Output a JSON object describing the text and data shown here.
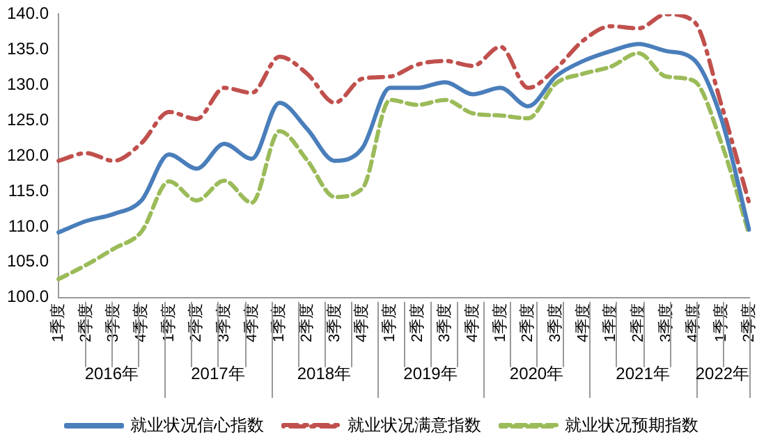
{
  "chart_data": {
    "type": "line",
    "categories": [
      "1季度",
      "2季度",
      "3季度",
      "4季度",
      "1季度",
      "2季度",
      "3季度",
      "4季度",
      "1季度",
      "2季度",
      "3季度",
      "4季度",
      "1季度",
      "2季度",
      "3季度",
      "4季度",
      "1季度",
      "2季度",
      "3季度",
      "4季度",
      "1季度",
      "2季度",
      "3季度",
      "4季度",
      "1季度",
      "2季度"
    ],
    "series": [
      {
        "name": "就业状况信心指数",
        "color": "#4a7ebb",
        "line_style": "solid",
        "values": [
          109.2,
          110.8,
          111.8,
          113.7,
          120.2,
          118.2,
          121.7,
          119.6,
          127.5,
          123.8,
          119.3,
          121.1,
          129.6,
          129.6,
          130.4,
          128.7,
          129.6,
          127.0,
          131.2,
          133.4,
          134.8,
          135.8,
          134.8,
          133.6,
          125.2,
          109.6
        ]
      },
      {
        "name": "就业状况满意指数",
        "color": "#c0504d",
        "line_style": "dashdot",
        "values": [
          119.3,
          120.4,
          119.3,
          121.8,
          126.2,
          125.2,
          129.6,
          128.9,
          134.0,
          131.6,
          127.5,
          130.9,
          131.2,
          132.9,
          133.4,
          132.7,
          135.4,
          129.6,
          132.3,
          136.3,
          138.3,
          138.0,
          140.0,
          139.0,
          127.2,
          113.4
        ]
      },
      {
        "name": "就业状况预期指数",
        "color": "#9bbb59",
        "line_style": "dashed",
        "values": [
          102.6,
          104.6,
          106.9,
          109.3,
          116.4,
          113.7,
          116.5,
          113.4,
          123.5,
          119.4,
          114.2,
          115.4,
          127.9,
          127.2,
          127.9,
          126.0,
          125.7,
          125.3,
          130.2,
          131.6,
          132.6,
          134.5,
          131.2,
          130.6,
          121.8,
          109.0
        ]
      }
    ],
    "ylim": [
      100,
      140
    ],
    "yticks": [
      {
        "value": 100,
        "label": "100.0"
      },
      {
        "value": 105,
        "label": "105.0"
      },
      {
        "value": 110,
        "label": "110.0"
      },
      {
        "value": 115,
        "label": "115.0"
      },
      {
        "value": 120,
        "label": "120.0"
      },
      {
        "value": 125,
        "label": "125.0"
      },
      {
        "value": 130,
        "label": "130.0"
      },
      {
        "value": 135,
        "label": "135.0"
      },
      {
        "value": 140,
        "label": "140.0"
      }
    ],
    "annotations": [
      "2016年",
      "2017年",
      "2018年",
      "2019年",
      "2020年",
      "2021年",
      "2022年"
    ],
    "grid": false,
    "legend": "bottom"
  }
}
